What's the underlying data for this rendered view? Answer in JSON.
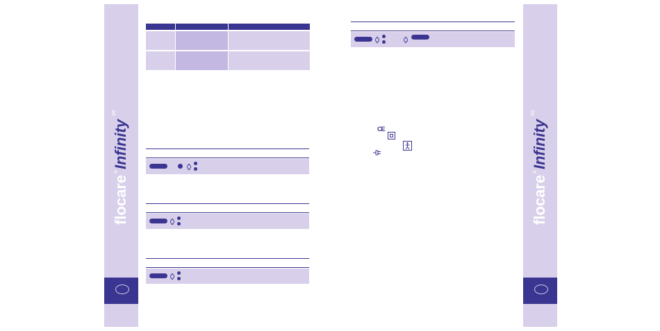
{
  "brand": {
    "wordmark": "flocare",
    "product": "Infinity",
    "registered_mark": "®"
  },
  "spec_table": {
    "rows": 2,
    "columns": 3
  },
  "icons": {
    "ce_mark": "CE",
    "power_pill": "button-pill",
    "up_down": "up-down-diamond",
    "dots": "two-dots",
    "class_ii": "double-square-icon",
    "type_bf": "bf-applied-part-icon",
    "mains_plug": "plug-icon"
  },
  "colors": {
    "accent": "#3a3590",
    "panel": "#d8d0ea",
    "panel_dark": "#c3b8e2"
  }
}
